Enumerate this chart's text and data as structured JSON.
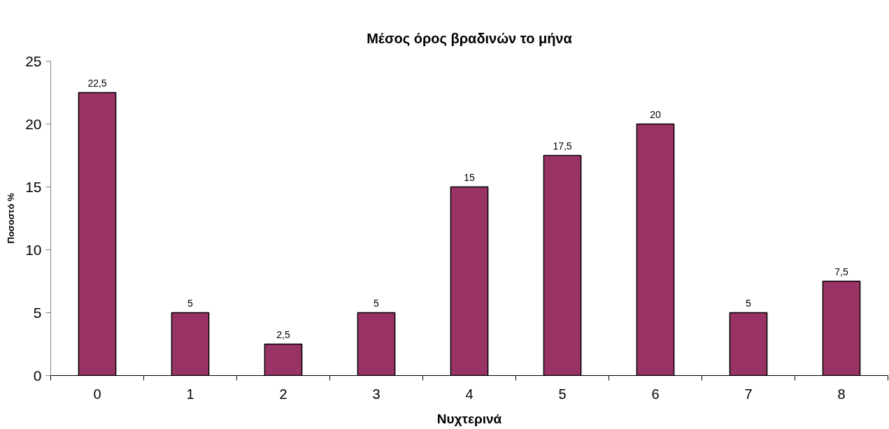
{
  "chart_data": {
    "type": "bar",
    "title": "Μέσος όρος βραδινών το μήνα",
    "xlabel": "Νυχτερινά",
    "ylabel": "Ποσοστό %",
    "categories": [
      "0",
      "1",
      "2",
      "3",
      "4",
      "5",
      "6",
      "7",
      "8"
    ],
    "values": [
      22.5,
      5,
      2.5,
      5,
      15,
      17.5,
      20,
      5,
      7.5
    ],
    "value_labels": [
      "22,5",
      "5",
      "2,5",
      "5",
      "15",
      "17,5",
      "20",
      "5",
      "7,5"
    ],
    "color": "#993366",
    "ylim": [
      0,
      25
    ],
    "yticks": [
      0,
      5,
      10,
      15,
      20,
      25
    ]
  }
}
